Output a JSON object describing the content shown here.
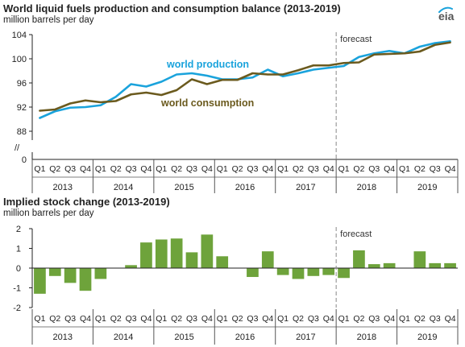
{
  "logo_text": "eia",
  "colors": {
    "production": "#1aa3dc",
    "consumption": "#6b5a1e",
    "bars": "#6ea33b",
    "forecast_line": "#888888",
    "axis": "#222222"
  },
  "chart_data": [
    {
      "type": "line",
      "title": "World liquid fuels production and consumption balance (2013-2019)",
      "ylabel": "million barrels per day",
      "ylim": [
        88,
        104
      ],
      "yticks": [
        "104",
        "100",
        "96",
        "92",
        "88"
      ],
      "axis_break_label": "//",
      "axis_zero_label": "0",
      "forecast_label": "forecast",
      "forecast_start_index": 20,
      "quarters": [
        "Q1",
        "Q2",
        "Q3",
        "Q4",
        "Q1",
        "Q2",
        "Q3",
        "Q4",
        "Q1",
        "Q2",
        "Q3",
        "Q4",
        "Q1",
        "Q2",
        "Q3",
        "Q4",
        "Q1",
        "Q2",
        "Q3",
        "Q4",
        "Q1",
        "Q2",
        "Q3",
        "Q4",
        "Q1",
        "Q2",
        "Q3",
        "Q4"
      ],
      "years": [
        "2013",
        "2014",
        "2015",
        "2016",
        "2017",
        "2018",
        "2019"
      ],
      "series": [
        {
          "name": "world production",
          "values": [
            90.2,
            91.3,
            91.9,
            92.0,
            92.3,
            93.7,
            95.8,
            95.4,
            96.2,
            97.4,
            97.6,
            97.2,
            96.6,
            96.6,
            96.9,
            98.2,
            97.1,
            97.6,
            98.2,
            98.5,
            98.8,
            100.3,
            100.9,
            101.3,
            100.9,
            102.0,
            102.6,
            102.9
          ]
        },
        {
          "name": "world consumption",
          "values": [
            91.4,
            91.6,
            92.6,
            93.1,
            92.8,
            93.0,
            94.1,
            94.4,
            94.0,
            94.8,
            96.6,
            95.8,
            96.5,
            96.5,
            97.6,
            97.4,
            97.4,
            98.1,
            98.9,
            98.9,
            99.3,
            99.4,
            100.7,
            100.8,
            100.9,
            101.2,
            102.3,
            102.7
          ]
        }
      ]
    },
    {
      "type": "bar",
      "title": "Implied stock change (2013-2019)",
      "ylabel": "million barrels per day",
      "ylim": [
        -2,
        2
      ],
      "yticks": [
        "2",
        "1",
        "0",
        "-1",
        "-2"
      ],
      "forecast_label": "forecast",
      "forecast_start_index": 20,
      "quarters": [
        "Q1",
        "Q2",
        "Q3",
        "Q4",
        "Q1",
        "Q2",
        "Q3",
        "Q4",
        "Q1",
        "Q2",
        "Q3",
        "Q4",
        "Q1",
        "Q2",
        "Q3",
        "Q4",
        "Q1",
        "Q2",
        "Q3",
        "Q4",
        "Q1",
        "Q2",
        "Q3",
        "Q4",
        "Q1",
        "Q2",
        "Q3",
        "Q4"
      ],
      "years": [
        "2013",
        "2014",
        "2015",
        "2016",
        "2017",
        "2018",
        "2019"
      ],
      "values": [
        -1.3,
        -0.4,
        -0.75,
        -1.15,
        -0.55,
        0.0,
        0.15,
        1.3,
        1.45,
        1.5,
        0.8,
        1.7,
        0.6,
        0.0,
        -0.45,
        0.85,
        -0.35,
        -0.55,
        -0.4,
        -0.35,
        -0.5,
        0.9,
        0.2,
        0.25,
        0.0,
        0.85,
        0.25,
        0.25
      ]
    }
  ],
  "titles": {
    "top": "World liquid fuels production and consumption balance (2013-2019)",
    "top_unit": "million barrels per day",
    "bottom": "Implied stock change (2013-2019)",
    "bottom_unit": "million barrels per day"
  }
}
